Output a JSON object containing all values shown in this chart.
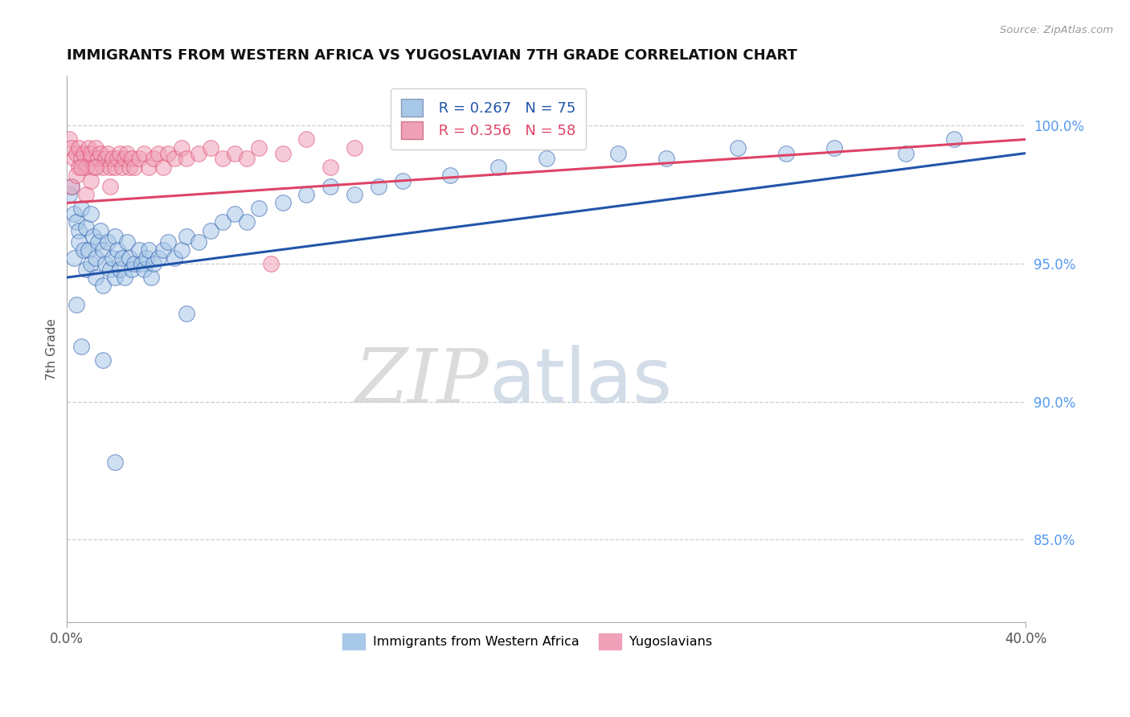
{
  "title": "IMMIGRANTS FROM WESTERN AFRICA VS YUGOSLAVIAN 7TH GRADE CORRELATION CHART",
  "source": "Source: ZipAtlas.com",
  "ylabel": "7th Grade",
  "ylabel_right_ticks": [
    85.0,
    90.0,
    95.0,
    100.0
  ],
  "ylabel_right_labels": [
    "85.0%",
    "90.0%",
    "95.0%",
    "100.0%"
  ],
  "xlim": [
    0.0,
    40.0
  ],
  "ylim": [
    82.0,
    101.8
  ],
  "blue_R": 0.267,
  "blue_N": 75,
  "pink_R": 0.356,
  "pink_N": 58,
  "blue_color": "#a8c8e8",
  "pink_color": "#f0a0b8",
  "blue_line_color": "#2255aa",
  "pink_line_color": "#dd4466",
  "legend_label_blue": "Immigrants from Western Africa",
  "legend_label_pink": "Yugoslavians",
  "watermark_zip": "ZIP",
  "watermark_atlas": "atlas",
  "blue_line_x0": 0.0,
  "blue_line_y0": 94.5,
  "blue_line_x1": 40.0,
  "blue_line_y1": 99.0,
  "pink_line_x0": 0.0,
  "pink_line_y0": 97.2,
  "pink_line_x1": 40.0,
  "pink_line_y1": 99.5,
  "blue_scatter_x": [
    0.1,
    0.2,
    0.3,
    0.3,
    0.4,
    0.5,
    0.5,
    0.6,
    0.7,
    0.8,
    0.8,
    0.9,
    1.0,
    1.0,
    1.1,
    1.2,
    1.2,
    1.3,
    1.4,
    1.5,
    1.5,
    1.6,
    1.7,
    1.8,
    1.9,
    2.0,
    2.0,
    2.1,
    2.2,
    2.3,
    2.4,
    2.5,
    2.6,
    2.7,
    2.8,
    3.0,
    3.1,
    3.2,
    3.3,
    3.4,
    3.5,
    3.6,
    3.8,
    4.0,
    4.2,
    4.5,
    4.8,
    5.0,
    5.5,
    6.0,
    6.5,
    7.0,
    7.5,
    8.0,
    9.0,
    10.0,
    11.0,
    12.0,
    13.0,
    14.0,
    16.0,
    18.0,
    20.0,
    23.0,
    25.0,
    28.0,
    30.0,
    32.0,
    35.0,
    37.0,
    0.4,
    0.6,
    1.5,
    2.0,
    5.0
  ],
  "blue_scatter_y": [
    97.5,
    97.8,
    96.8,
    95.2,
    96.5,
    96.2,
    95.8,
    97.0,
    95.5,
    96.3,
    94.8,
    95.5,
    96.8,
    95.0,
    96.0,
    95.2,
    94.5,
    95.8,
    96.2,
    95.5,
    94.2,
    95.0,
    95.8,
    94.8,
    95.2,
    96.0,
    94.5,
    95.5,
    94.8,
    95.2,
    94.5,
    95.8,
    95.2,
    94.8,
    95.0,
    95.5,
    95.0,
    94.8,
    95.2,
    95.5,
    94.5,
    95.0,
    95.2,
    95.5,
    95.8,
    95.2,
    95.5,
    96.0,
    95.8,
    96.2,
    96.5,
    96.8,
    96.5,
    97.0,
    97.2,
    97.5,
    97.8,
    97.5,
    97.8,
    98.0,
    98.2,
    98.5,
    98.8,
    99.0,
    98.8,
    99.2,
    99.0,
    99.2,
    99.0,
    99.5,
    93.5,
    92.0,
    91.5,
    87.8,
    93.2
  ],
  "pink_scatter_x": [
    0.1,
    0.2,
    0.3,
    0.4,
    0.5,
    0.5,
    0.6,
    0.7,
    0.8,
    0.9,
    1.0,
    1.0,
    1.1,
    1.2,
    1.3,
    1.4,
    1.5,
    1.6,
    1.7,
    1.8,
    1.9,
    2.0,
    2.1,
    2.2,
    2.3,
    2.4,
    2.5,
    2.6,
    2.7,
    2.8,
    3.0,
    3.2,
    3.4,
    3.6,
    3.8,
    4.0,
    4.2,
    4.5,
    4.8,
    5.0,
    5.5,
    6.0,
    6.5,
    7.0,
    7.5,
    8.0,
    9.0,
    10.0,
    11.0,
    12.0,
    0.2,
    0.4,
    0.6,
    0.8,
    1.0,
    1.2,
    1.8,
    8.5
  ],
  "pink_scatter_y": [
    99.5,
    99.2,
    98.8,
    99.0,
    98.5,
    99.2,
    98.8,
    99.0,
    98.5,
    99.2,
    98.8,
    99.0,
    98.5,
    99.2,
    98.8,
    99.0,
    98.5,
    98.8,
    99.0,
    98.5,
    98.8,
    98.5,
    98.8,
    99.0,
    98.5,
    98.8,
    99.0,
    98.5,
    98.8,
    98.5,
    98.8,
    99.0,
    98.5,
    98.8,
    99.0,
    98.5,
    99.0,
    98.8,
    99.2,
    98.8,
    99.0,
    99.2,
    98.8,
    99.0,
    98.8,
    99.2,
    99.0,
    99.5,
    98.5,
    99.2,
    97.8,
    98.2,
    98.5,
    97.5,
    98.0,
    98.5,
    97.8,
    95.0
  ]
}
